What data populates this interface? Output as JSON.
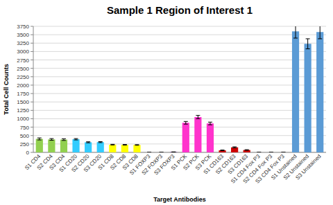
{
  "chart_data": {
    "type": "bar",
    "title": "Sample 1 Region of Interest 1",
    "x_label": "Target Antibodies",
    "y_label": "Total Cell Counts",
    "categories": [
      "S1 CD4",
      "S2 CD4",
      "S3 CD4",
      "S1 CD20",
      "S2 CD20",
      "S3 CD20",
      "S1 CD8",
      "S2 CD8",
      "S3 CD8",
      "S1 FOXP3",
      "S2 FOXP3",
      "S3 FOXP3",
      "S1 PCK",
      "S2 PCK",
      "S3 PCK",
      "S1 CD163",
      "S2 CD163",
      "S3 CD163",
      "S1 CD4 Fox P3",
      "S2 CD4 Fox P3",
      "S3 CD4 Fox P3",
      "S1 Unstained",
      "S2 Unstained",
      "S3 Unstained"
    ],
    "values": [
      400,
      385,
      380,
      390,
      300,
      305,
      230,
      225,
      220,
      0,
      0,
      10,
      880,
      1050,
      860,
      60,
      150,
      70,
      0,
      0,
      0,
      3600,
      3230,
      3580
    ],
    "errors": [
      30,
      25,
      25,
      20,
      15,
      15,
      10,
      10,
      10,
      0,
      0,
      5,
      40,
      50,
      40,
      10,
      15,
      10,
      0,
      0,
      0,
      200,
      150,
      200
    ],
    "colors": [
      "#92d050",
      "#92d050",
      "#92d050",
      "#33ccff",
      "#33ccff",
      "#33ccff",
      "#ffff00",
      "#ffff00",
      "#ffff00",
      "#7030a0",
      "#7030a0",
      "#7030a0",
      "#ff33cc",
      "#ff33cc",
      "#ff33cc",
      "#cc0000",
      "#cc0000",
      "#cc0000",
      "#ffc000",
      "#ffc000",
      "#ffc000",
      "#5b9bd5",
      "#5b9bd5",
      "#5b9bd5"
    ],
    "ylim": [
      0,
      3750
    ],
    "yticks": [
      0,
      250,
      500,
      750,
      1000,
      1250,
      1500,
      1750,
      2000,
      2250,
      2500,
      2750,
      3000,
      3250,
      3500,
      3750
    ],
    "grid": true
  }
}
